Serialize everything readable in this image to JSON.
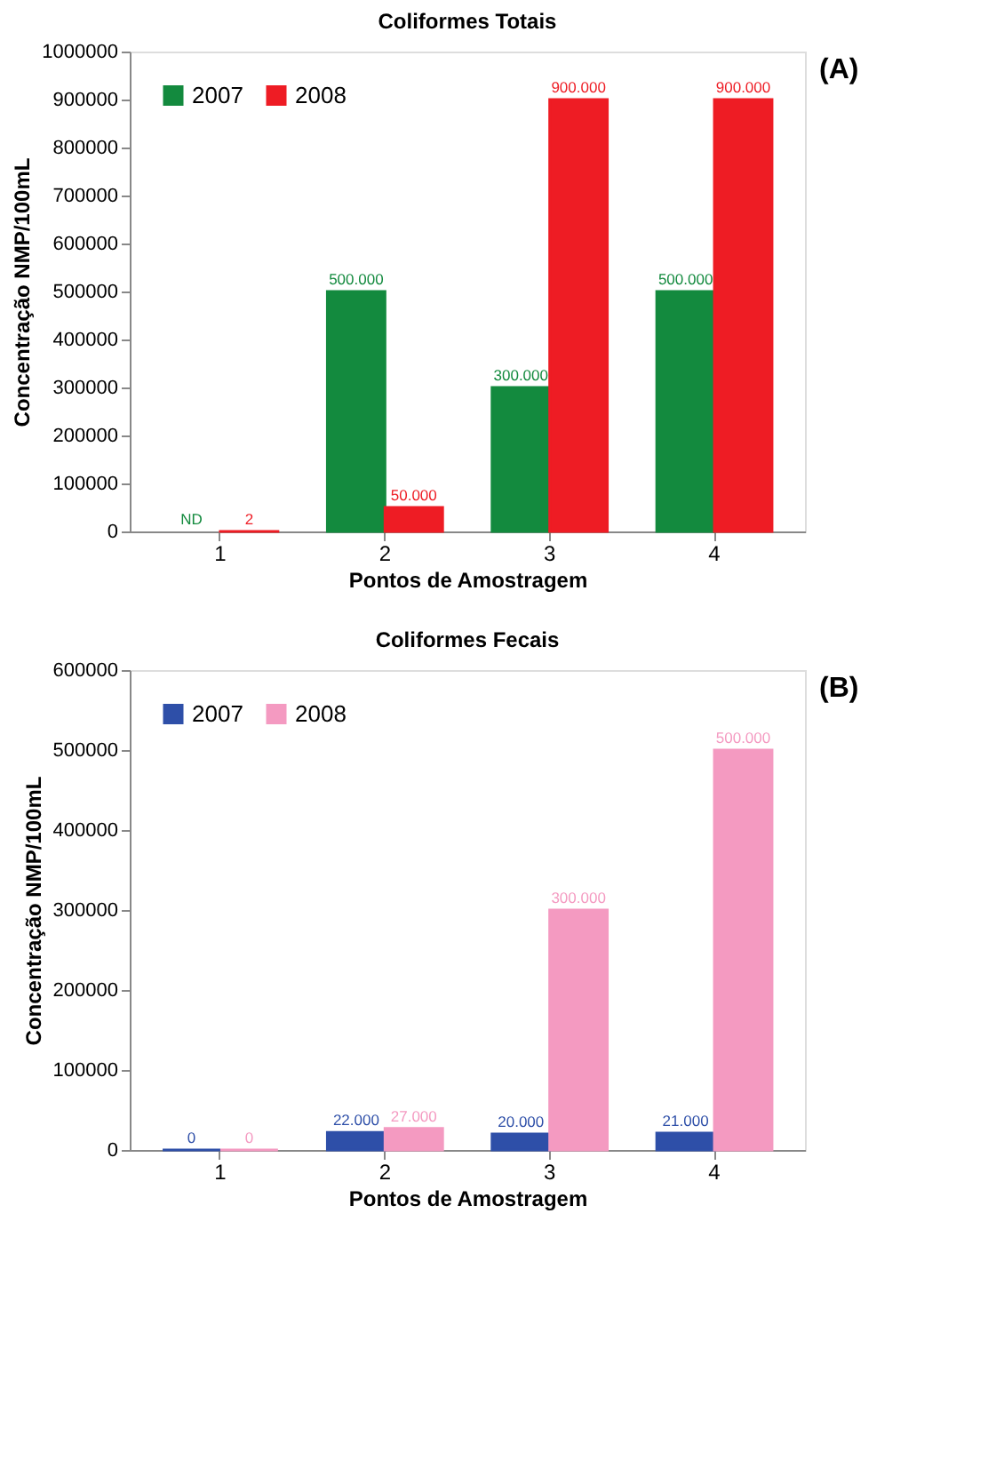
{
  "chart_data": [
    {
      "type": "bar",
      "title": "Coliformes Totais",
      "xlabel": "Pontos de Amostragem",
      "ylabel": "Concentração NMP/100mL",
      "categories": [
        "1",
        "2",
        "3",
        "4"
      ],
      "series": [
        {
          "name": "2007",
          "color": "#138a3e",
          "values": [
            null,
            500000,
            300000,
            500000
          ],
          "value_labels": [
            "ND",
            "500.000",
            "300.000",
            "500.000"
          ]
        },
        {
          "name": "2008",
          "color": "#ee1c24",
          "values": [
            2,
            50000,
            900000,
            900000
          ],
          "value_labels": [
            "2",
            "50.000",
            "900.000",
            "900.000"
          ]
        }
      ],
      "ylim": [
        0,
        1000000
      ],
      "yticks": [
        0,
        100000,
        200000,
        300000,
        400000,
        500000,
        600000,
        700000,
        800000,
        900000,
        1000000
      ],
      "grid": false,
      "legend": "top left",
      "annotations": [
        "(A)"
      ]
    },
    {
      "type": "bar",
      "title": "Coliformes Fecais",
      "xlabel": "Pontos de Amostragem",
      "ylabel": "Concentração NMP/100mL",
      "categories": [
        "1",
        "2",
        "3",
        "4"
      ],
      "series": [
        {
          "name": "2007",
          "color": "#2e4fa8",
          "values": [
            0,
            22000,
            20000,
            21000
          ],
          "value_labels": [
            "0",
            "22.000",
            "20.000",
            "21.000"
          ]
        },
        {
          "name": "2008",
          "color": "#f49ac1",
          "values": [
            0,
            27000,
            300000,
            500000
          ],
          "value_labels": [
            "0",
            "27.000",
            "300.000",
            "500.000"
          ]
        }
      ],
      "ylim": [
        0,
        600000
      ],
      "yticks": [
        0,
        100000,
        200000,
        300000,
        400000,
        500000,
        600000
      ],
      "grid": false,
      "legend": "top left",
      "annotations": [
        "(B)"
      ]
    }
  ]
}
